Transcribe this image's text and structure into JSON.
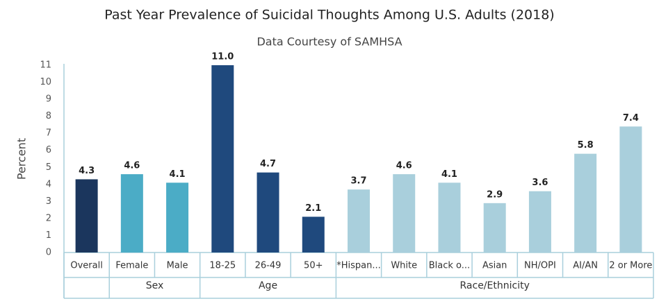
{
  "chart_data": {
    "type": "bar",
    "title": "Past Year Prevalence of Suicidal Thoughts Among U.S. Adults (2018)",
    "subtitle": "Data Courtesy of SAMHSA",
    "y_label": "Percent",
    "ylim": [
      0,
      11
    ],
    "yticks": [
      0,
      1,
      2,
      3,
      4,
      5,
      6,
      7,
      8,
      9,
      10,
      11
    ],
    "grid": false,
    "groups": [
      {
        "name": null,
        "color": "#1b365d",
        "categories": [
          "Overall"
        ],
        "values": [
          4.3
        ],
        "value_labels": [
          "4.3"
        ]
      },
      {
        "name": "Sex",
        "color": "#4bacc6",
        "categories": [
          "Female",
          "Male"
        ],
        "values": [
          4.6,
          4.1
        ],
        "value_labels": [
          "4.6",
          "4.1"
        ]
      },
      {
        "name": "Age",
        "color": "#1f497d",
        "categories": [
          "18-25",
          "26-49",
          "50+"
        ],
        "values": [
          11,
          4.7,
          2.1
        ],
        "value_labels": [
          "11.0",
          "4.7",
          "2.1"
        ]
      },
      {
        "name": "Race/Ethnicity",
        "color": "#a9cfdc",
        "categories": [
          "*Hispan...",
          "White",
          "Black o...",
          "Asian",
          "NH/OPI",
          "AI/AN",
          "2 or More"
        ],
        "values": [
          3.7,
          4.6,
          4.1,
          2.9,
          3.6,
          5.8,
          7.4
        ],
        "value_labels": [
          "3.7",
          "4.6",
          "4.1",
          "2.9",
          "3.6",
          "5.8",
          "7.4"
        ]
      }
    ]
  }
}
